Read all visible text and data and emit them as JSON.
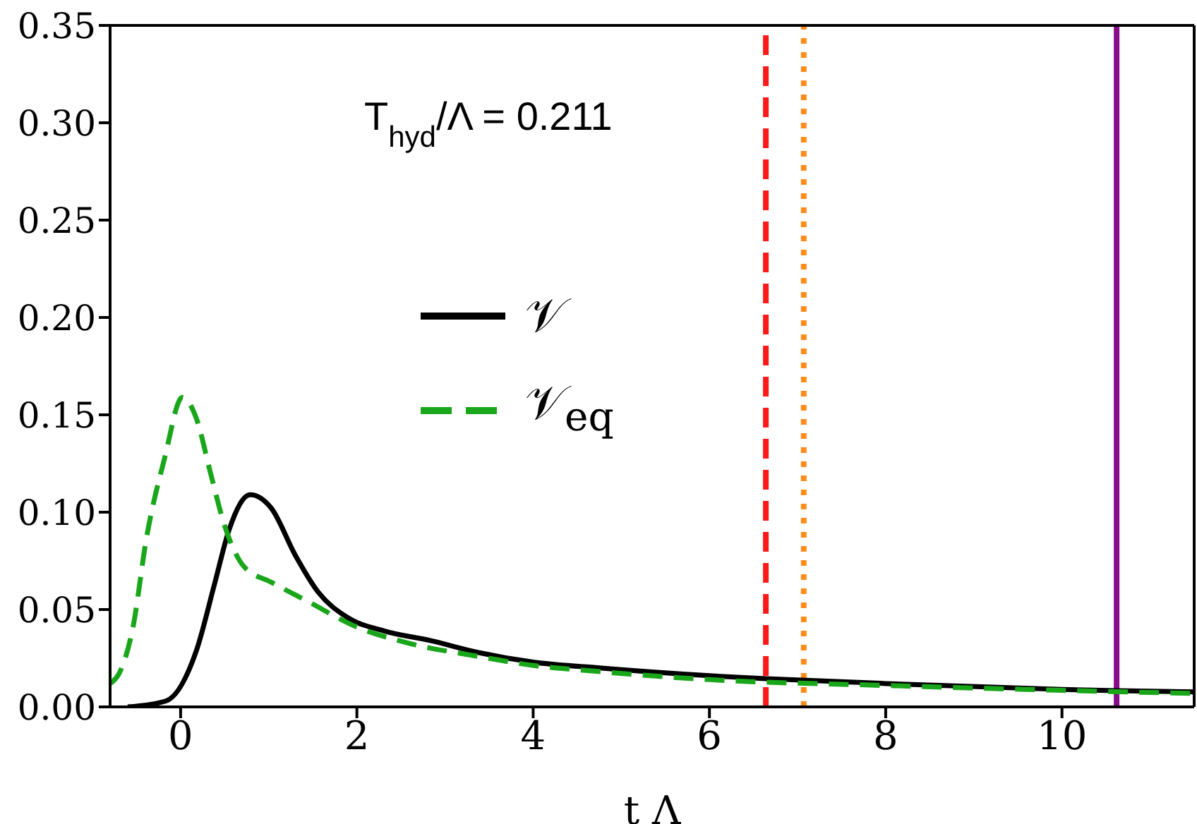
{
  "chart_data": {
    "type": "line",
    "xlabel": "t Λ",
    "annotations": [
      "T$_{hyd}$/Λ = 0.211"
    ],
    "xlim": [
      -0.8,
      11.5
    ],
    "xticks": [
      0,
      2,
      4,
      6,
      8,
      10
    ],
    "ylim": [
      0,
      0.35
    ],
    "yticks": [
      {
        "value": 0,
        "label": "0.00"
      },
      {
        "value": 0.05,
        "label": "0.05"
      },
      {
        "value": 0.1,
        "label": "0.10"
      },
      {
        "value": 0.15,
        "label": "0.15"
      },
      {
        "value": 0.2,
        "label": "0.20"
      },
      {
        "value": 0.25,
        "label": "0.25"
      },
      {
        "value": 0.3,
        "label": "0.30"
      },
      {
        "value": 0.35,
        "label": "0.35"
      }
    ],
    "legend": "left",
    "marker": "none",
    "series": [
      {
        "name": "𝒱",
        "color": "#000000",
        "line_style": "solid",
        "x": [
          -0.6,
          -0.17,
          0.18,
          0.39,
          0.55,
          0.79,
          1.03,
          1.3,
          1.56,
          1.89,
          2.31,
          2.84,
          3.37,
          4.0,
          4.75,
          6.0,
          6.64,
          8.0,
          10.0,
          10.62,
          11.5
        ],
        "values": [
          0,
          0.003,
          0.029,
          0.064,
          0.091,
          0.109,
          0.102,
          0.078,
          0.059,
          0.046,
          0.039,
          0.034,
          0.028,
          0.023,
          0.02,
          0.016,
          0.0145,
          0.012,
          0.009,
          0.0083,
          0.0077
        ]
      },
      {
        "name": "𝒱$_{eq}$",
        "color": "#1aa61a",
        "line_style": "dashed",
        "x": [
          -0.8,
          -0.7,
          -0.54,
          -0.39,
          -0.18,
          0.02,
          0.18,
          0.34,
          0.5,
          0.72,
          1.03,
          1.45,
          2.0,
          2.56,
          3.37,
          4.05,
          4.53,
          6.0,
          8.0,
          10.0,
          11.5
        ],
        "values": [
          0.012,
          0.017,
          0.041,
          0.086,
          0.128,
          0.159,
          0.148,
          0.12,
          0.093,
          0.072,
          0.064,
          0.054,
          0.041,
          0.033,
          0.026,
          0.021,
          0.019,
          0.014,
          0.011,
          0.0085,
          0.0069
        ]
      }
    ],
    "ref_lines": [
      {
        "axis": "x",
        "value": 6.64,
        "color": "#ff1a1a",
        "line_style": "dashed"
      },
      {
        "axis": "x",
        "value": 7.07,
        "color": "#ff8c1a",
        "line_style": "dotted"
      },
      {
        "axis": "x",
        "value": 10.62,
        "color": "#8b0a8b",
        "line_style": "solid"
      }
    ]
  }
}
